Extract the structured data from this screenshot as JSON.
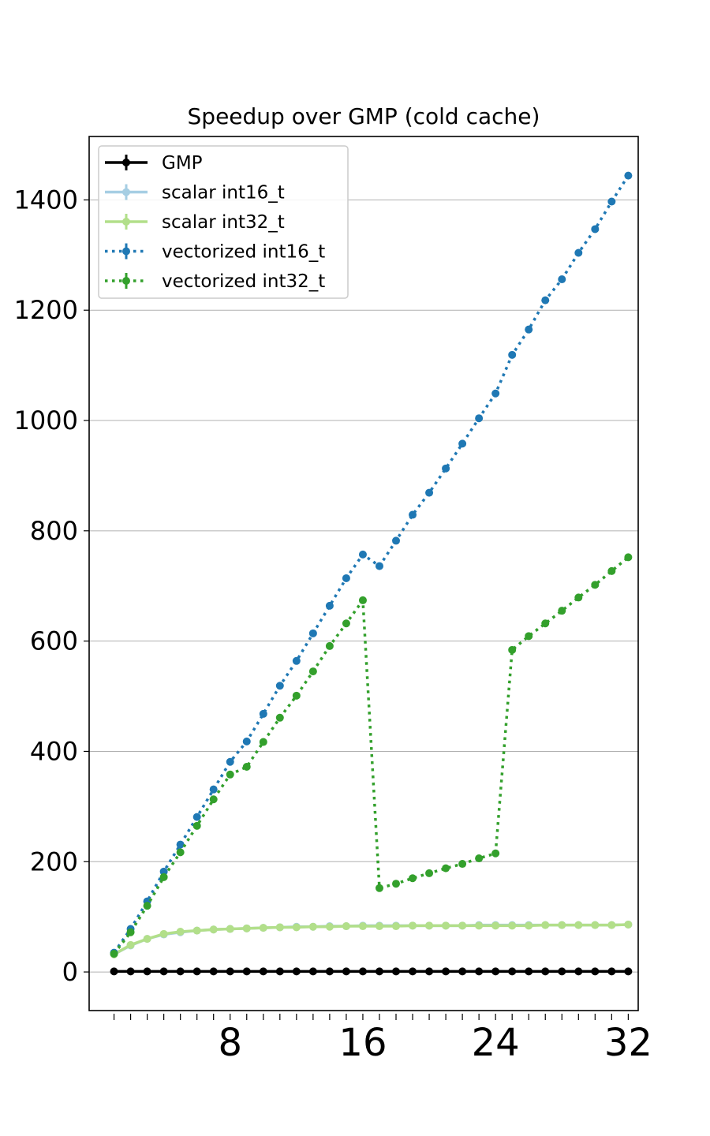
{
  "chart_data": {
    "type": "line",
    "title": "Speedup over GMP (cold cache)",
    "xlabel": "",
    "ylabel": "",
    "xlim": [
      -0.5,
      32.6
    ],
    "ylim": [
      -70,
      1515
    ],
    "x_ticks_major": [
      8,
      16,
      24,
      32
    ],
    "x_tick_labels": [
      "8",
      "16",
      "24",
      "32"
    ],
    "y_ticks": [
      0,
      200,
      400,
      600,
      800,
      1000,
      1200,
      1400
    ],
    "y_tick_labels": [
      "0",
      "200",
      "400",
      "600",
      "800",
      "1000",
      "1200",
      "1400"
    ],
    "grid": "horizontal",
    "legend_position": "top-left",
    "x": [
      1,
      2,
      3,
      4,
      5,
      6,
      7,
      8,
      9,
      10,
      11,
      12,
      13,
      14,
      15,
      16,
      17,
      18,
      19,
      20,
      21,
      22,
      23,
      24,
      25,
      26,
      27,
      28,
      29,
      30,
      31,
      32
    ],
    "series": [
      {
        "name": "GMP",
        "color": "#000000",
        "style": "solid",
        "values": [
          1,
          1,
          1,
          1,
          1,
          1,
          1,
          1,
          1,
          1,
          1,
          1,
          1,
          1,
          1,
          1,
          1,
          1,
          1,
          1,
          1,
          1,
          1,
          1,
          1,
          1,
          1,
          1,
          1,
          1,
          1,
          1
        ]
      },
      {
        "name": "scalar int16_t",
        "color": "#a6cee3",
        "style": "solid",
        "values": [
          32,
          48,
          60,
          68,
          72,
          75,
          77,
          78,
          79,
          80,
          81,
          82,
          82,
          83,
          83,
          84,
          84,
          84,
          84,
          84,
          84,
          84,
          85,
          85,
          85,
          85,
          85,
          85,
          85,
          85,
          85,
          86
        ]
      },
      {
        "name": "scalar int32_t",
        "color": "#b2df8a",
        "style": "solid",
        "values": [
          32,
          49,
          60,
          69,
          73,
          75,
          77,
          78,
          79,
          80,
          81,
          81,
          82,
          82,
          83,
          83,
          83,
          83,
          84,
          84,
          84,
          84,
          84,
          84,
          84,
          84,
          85,
          85,
          85,
          85,
          85,
          86
        ]
      },
      {
        "name": "vectorized int16_t",
        "color": "#1f78b4",
        "style": "dotted",
        "values": [
          35,
          78,
          128,
          182,
          231,
          281,
          331,
          381,
          418,
          468,
          519,
          564,
          614,
          664,
          714,
          757,
          736,
          782,
          829,
          869,
          913,
          958,
          1004,
          1049,
          1119,
          1165,
          1218,
          1256,
          1304,
          1347,
          1397,
          1444
        ]
      },
      {
        "name": "vectorized int32_t",
        "color": "#33a02c",
        "style": "dotted",
        "values": [
          33,
          72,
          120,
          172,
          217,
          265,
          313,
          358,
          372,
          417,
          461,
          501,
          545,
          591,
          632,
          674,
          152,
          160,
          170,
          179,
          188,
          196,
          206,
          215,
          584,
          609,
          632,
          655,
          679,
          702,
          727,
          752
        ]
      }
    ]
  }
}
